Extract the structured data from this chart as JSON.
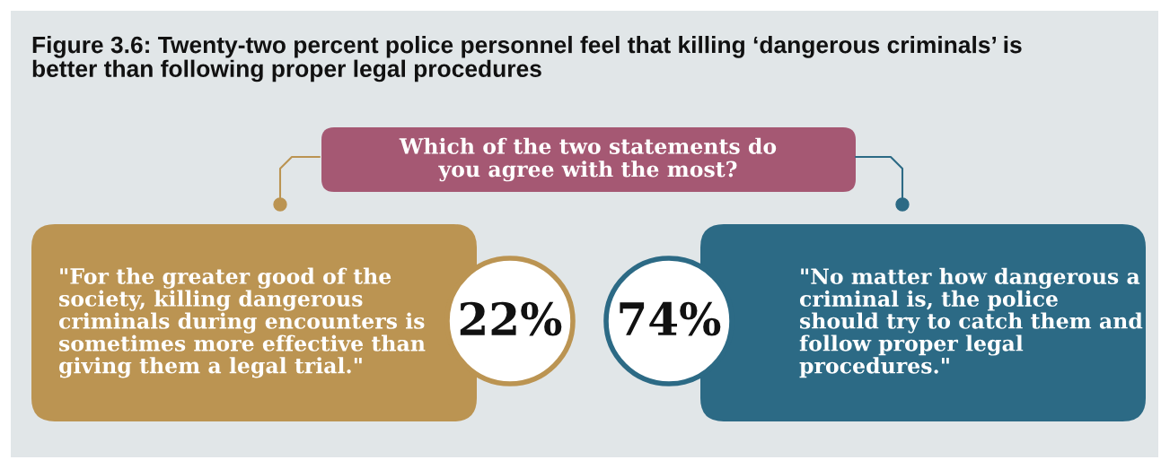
{
  "chart_data": {
    "type": "other",
    "title": "Figure 3.6: Twenty-two percent police personnel feel that killing ‘dangerous criminals’ is better than following proper legal procedures",
    "subtitle": "Which of the two statements do you agree with the most?",
    "categories": [
      "\"For the greater good of the society, killing dangerous criminals during encounters is sometimes more effective than giving them a legal trial.\"",
      "\"No matter how dangerous a criminal is, the police should try to catch them and follow proper legal procedures.\""
    ],
    "values": [
      22,
      74
    ],
    "value_labels": [
      "22%",
      "74%"
    ],
    "colors": [
      "#bb9452",
      "#2c6a85"
    ]
  }
}
